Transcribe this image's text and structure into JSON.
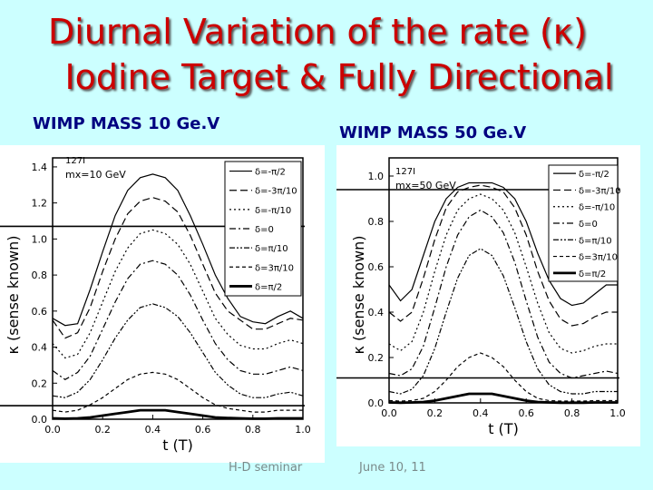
{
  "slide": {
    "title_line1": "Diurnal Variation of the rate (κ)",
    "title_line2": "Iodine Target & Fully Directional",
    "left_heading": "WIMP MASS 10 Ge.V",
    "right_heading": "WIMP MASS 50 Ge.V",
    "footer_left": "H-D seminar",
    "footer_right": "June 10, 11"
  },
  "colors": {
    "title": "#cc0000",
    "heading": "#000080",
    "background": "#ccffff"
  },
  "chart_data": [
    {
      "type": "line",
      "xlabel": "t (T)",
      "ylabel": "κ (sense known)",
      "xlim": [
        0.0,
        1.0
      ],
      "ylim": [
        0.0,
        1.45
      ],
      "xticks": [
        "0.0",
        "0.2",
        "0.4",
        "0.6",
        "0.8",
        "1.0"
      ],
      "yticks": [
        "0.0",
        "0.2",
        "0.4",
        "0.6",
        "0.8",
        "1.0",
        "1.2",
        "1.4"
      ],
      "annotation_isotope": "127I",
      "annotation_mass": "mx=10 GeV",
      "reference_lines": [
        1.07,
        0.075
      ],
      "legend": [
        "δ=-π/2",
        "δ=-3π/10",
        "δ=-π/10",
        "δ=0",
        "δ=π/10",
        "δ=3π/10",
        "δ=π/2"
      ],
      "x": [
        0.0,
        0.05,
        0.1,
        0.15,
        0.2,
        0.25,
        0.3,
        0.35,
        0.4,
        0.45,
        0.5,
        0.55,
        0.6,
        0.65,
        0.7,
        0.75,
        0.8,
        0.85,
        0.9,
        0.95,
        1.0
      ],
      "series": [
        {
          "name": "δ=-π/2",
          "style": "solid",
          "values": [
            0.56,
            0.52,
            0.53,
            0.72,
            0.93,
            1.13,
            1.27,
            1.34,
            1.36,
            1.34,
            1.27,
            1.13,
            0.97,
            0.8,
            0.67,
            0.57,
            0.54,
            0.53,
            0.57,
            0.6,
            0.56
          ]
        },
        {
          "name": "δ=-3π/10",
          "style": "dashed",
          "values": [
            0.55,
            0.45,
            0.48,
            0.62,
            0.82,
            1.0,
            1.14,
            1.21,
            1.23,
            1.21,
            1.15,
            1.02,
            0.86,
            0.7,
            0.6,
            0.55,
            0.5,
            0.5,
            0.53,
            0.56,
            0.55
          ]
        },
        {
          "name": "δ=-π/10",
          "style": "dotted",
          "values": [
            0.42,
            0.34,
            0.36,
            0.48,
            0.65,
            0.82,
            0.95,
            1.03,
            1.05,
            1.03,
            0.97,
            0.86,
            0.71,
            0.56,
            0.47,
            0.41,
            0.39,
            0.39,
            0.42,
            0.44,
            0.42
          ]
        },
        {
          "name": "δ=0",
          "style": "dashdot",
          "values": [
            0.27,
            0.22,
            0.26,
            0.35,
            0.5,
            0.65,
            0.78,
            0.86,
            0.88,
            0.86,
            0.8,
            0.69,
            0.55,
            0.42,
            0.33,
            0.27,
            0.25,
            0.25,
            0.27,
            0.29,
            0.27
          ]
        },
        {
          "name": "δ=π/10",
          "style": "dashdotdot",
          "values": [
            0.13,
            0.12,
            0.15,
            0.22,
            0.33,
            0.45,
            0.55,
            0.62,
            0.64,
            0.62,
            0.57,
            0.48,
            0.37,
            0.26,
            0.19,
            0.14,
            0.12,
            0.12,
            0.14,
            0.15,
            0.13
          ]
        },
        {
          "name": "δ=3π/10",
          "style": "dashed-short",
          "values": [
            0.05,
            0.04,
            0.05,
            0.08,
            0.12,
            0.17,
            0.22,
            0.25,
            0.26,
            0.25,
            0.22,
            0.17,
            0.12,
            0.08,
            0.06,
            0.05,
            0.04,
            0.04,
            0.05,
            0.05,
            0.05
          ]
        },
        {
          "name": "δ=π/2",
          "style": "thick",
          "values": [
            0.005,
            0.003,
            0.005,
            0.01,
            0.02,
            0.03,
            0.04,
            0.05,
            0.05,
            0.05,
            0.04,
            0.03,
            0.02,
            0.01,
            0.007,
            0.005,
            0.003,
            0.003,
            0.005,
            0.005,
            0.005
          ]
        }
      ]
    },
    {
      "type": "line",
      "xlabel": "t (T)",
      "ylabel": "κ (sense known)",
      "xlim": [
        0.0,
        1.0
      ],
      "ylim": [
        0.0,
        1.08
      ],
      "xticks": [
        "0.0",
        "0.2",
        "0.4",
        "0.6",
        "0.8",
        "1.0"
      ],
      "yticks": [
        "0.0",
        "0.2",
        "0.4",
        "0.6",
        "0.8",
        "1.0"
      ],
      "annotation_isotope": "127I",
      "annotation_mass": "mx=50 GeV",
      "reference_lines": [
        0.94,
        0.11
      ],
      "legend": [
        "δ=-π/2",
        "δ=-3π/10",
        "δ=-π/10",
        "δ=0",
        "δ=π/10",
        "δ=3π/10",
        "δ=π/2"
      ],
      "x": [
        0.0,
        0.05,
        0.1,
        0.15,
        0.2,
        0.25,
        0.3,
        0.35,
        0.4,
        0.45,
        0.5,
        0.55,
        0.6,
        0.65,
        0.7,
        0.75,
        0.8,
        0.85,
        0.9,
        0.95,
        1.0
      ],
      "series": [
        {
          "name": "δ=-π/2",
          "style": "solid",
          "values": [
            0.52,
            0.45,
            0.5,
            0.65,
            0.8,
            0.9,
            0.95,
            0.97,
            0.97,
            0.97,
            0.95,
            0.9,
            0.8,
            0.66,
            0.54,
            0.46,
            0.43,
            0.44,
            0.48,
            0.52,
            0.52
          ]
        },
        {
          "name": "δ=-3π/10",
          "style": "dashed",
          "values": [
            0.4,
            0.36,
            0.4,
            0.55,
            0.72,
            0.86,
            0.93,
            0.95,
            0.96,
            0.95,
            0.93,
            0.86,
            0.74,
            0.58,
            0.45,
            0.37,
            0.34,
            0.35,
            0.38,
            0.4,
            0.4
          ]
        },
        {
          "name": "δ=-π/10",
          "style": "dotted",
          "values": [
            0.26,
            0.23,
            0.27,
            0.4,
            0.58,
            0.74,
            0.85,
            0.9,
            0.92,
            0.9,
            0.85,
            0.75,
            0.6,
            0.44,
            0.31,
            0.24,
            0.22,
            0.23,
            0.25,
            0.26,
            0.26
          ]
        },
        {
          "name": "δ=0",
          "style": "dashdot",
          "values": [
            0.13,
            0.12,
            0.15,
            0.25,
            0.42,
            0.6,
            0.74,
            0.82,
            0.85,
            0.82,
            0.75,
            0.62,
            0.45,
            0.29,
            0.18,
            0.13,
            0.11,
            0.12,
            0.13,
            0.14,
            0.13
          ]
        },
        {
          "name": "δ=π/10",
          "style": "dashdotdot",
          "values": [
            0.05,
            0.04,
            0.06,
            0.12,
            0.24,
            0.4,
            0.55,
            0.65,
            0.68,
            0.65,
            0.56,
            0.42,
            0.27,
            0.15,
            0.08,
            0.05,
            0.04,
            0.04,
            0.05,
            0.05,
            0.05
          ]
        },
        {
          "name": "δ=3π/10",
          "style": "dashed-short",
          "values": [
            0.01,
            0.008,
            0.01,
            0.02,
            0.05,
            0.1,
            0.16,
            0.2,
            0.22,
            0.2,
            0.16,
            0.1,
            0.05,
            0.02,
            0.01,
            0.008,
            0.008,
            0.008,
            0.01,
            0.01,
            0.01
          ]
        },
        {
          "name": "δ=π/2",
          "style": "thick",
          "values": [
            0.002,
            0.001,
            0.002,
            0.004,
            0.01,
            0.02,
            0.03,
            0.04,
            0.04,
            0.04,
            0.03,
            0.02,
            0.01,
            0.004,
            0.002,
            0.001,
            0.001,
            0.001,
            0.002,
            0.002,
            0.002
          ]
        }
      ]
    }
  ]
}
